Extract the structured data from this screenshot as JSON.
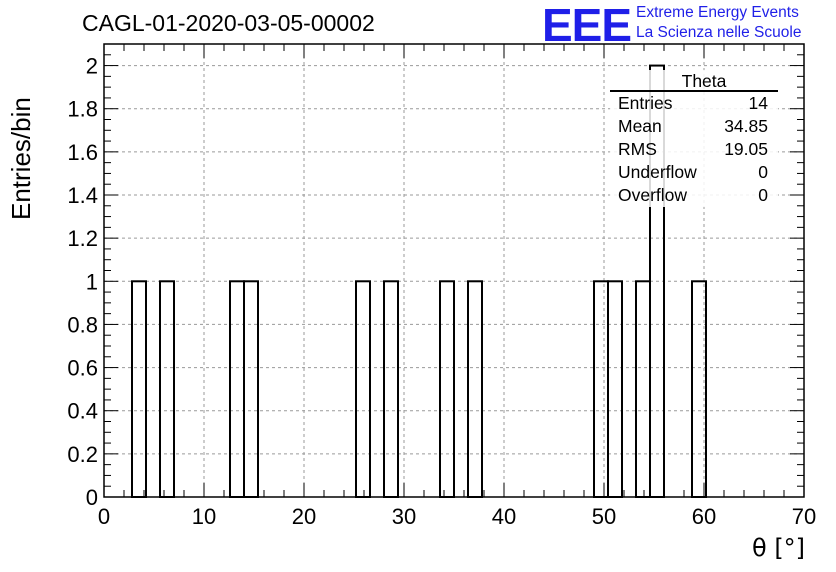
{
  "header": {
    "title": "CAGL-01-2020-03-05-00002",
    "logo_text": "EEE",
    "brand_line1": "Extreme Energy Events",
    "brand_line2": "La Scienza nelle Scuole",
    "brand_color": "#1f1fe8"
  },
  "stats": {
    "name": "Theta",
    "rows": [
      {
        "label": "Entries",
        "value": "14"
      },
      {
        "label": "Mean",
        "value": "34.85"
      },
      {
        "label": "RMS",
        "value": "19.05"
      },
      {
        "label": "Underflow",
        "value": "0"
      },
      {
        "label": "Overflow",
        "value": "0"
      }
    ]
  },
  "chart_data": {
    "type": "bar",
    "title": "CAGL-01-2020-03-05-00002",
    "xlabel": "θ [°]",
    "ylabel": "Entries/bin",
    "xlim": [
      0,
      70
    ],
    "ylim": [
      0,
      2.1
    ],
    "bin_width": 1.4,
    "grid": true,
    "xticks": [
      0,
      10,
      20,
      30,
      40,
      50,
      60,
      70
    ],
    "yticks": [
      0,
      0.2,
      0.4,
      0.6,
      0.8,
      1,
      1.2,
      1.4,
      1.6,
      1.8,
      2
    ],
    "bins": [
      {
        "x": 2.8,
        "value": 1
      },
      {
        "x": 5.6,
        "value": 1
      },
      {
        "x": 12.6,
        "value": 1
      },
      {
        "x": 14.0,
        "value": 1
      },
      {
        "x": 25.2,
        "value": 1
      },
      {
        "x": 28.0,
        "value": 1
      },
      {
        "x": 33.6,
        "value": 1
      },
      {
        "x": 36.4,
        "value": 1
      },
      {
        "x": 49.0,
        "value": 1
      },
      {
        "x": 50.4,
        "value": 1
      },
      {
        "x": 53.2,
        "value": 1
      },
      {
        "x": 54.6,
        "value": 2
      },
      {
        "x": 58.8,
        "value": 1
      }
    ]
  }
}
